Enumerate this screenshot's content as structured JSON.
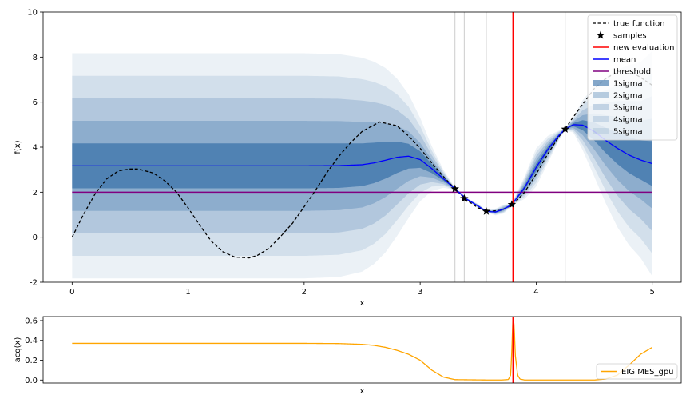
{
  "chart_data": [
    {
      "type": "line",
      "xlabel": "x",
      "ylabel": "f(x)",
      "xlim": [
        -0.25,
        5.25
      ],
      "ylim": [
        -2,
        10
      ],
      "xticks": [
        0,
        1,
        2,
        3,
        4,
        5
      ],
      "yticks": [
        -2,
        0,
        2,
        4,
        6,
        8,
        10
      ],
      "grid": false,
      "legend_position": "top-right",
      "legend": [
        "true function",
        "samples",
        "new evaluation",
        "mean",
        "threshold",
        "1sigma",
        "2sigma",
        "3sigma",
        "4sigma",
        "5sigma"
      ],
      "samples": [
        {
          "x": 3.3,
          "y": 2.15
        },
        {
          "x": 3.38,
          "y": 1.72
        },
        {
          "x": 3.57,
          "y": 1.15
        },
        {
          "x": 3.79,
          "y": 1.45
        },
        {
          "x": 4.25,
          "y": 4.8
        }
      ],
      "new_evaluation_x": 3.8,
      "threshold": 2.0,
      "sample_vlines_x": [
        3.3,
        3.38,
        3.57,
        4.25
      ],
      "true_function": {
        "x": [
          0,
          0.1,
          0.2,
          0.3,
          0.4,
          0.5,
          0.57,
          0.7,
          0.8,
          0.9,
          1.0,
          1.1,
          1.2,
          1.3,
          1.4,
          1.53,
          1.6,
          1.7,
          1.8,
          1.9,
          2.0,
          2.1,
          2.2,
          2.3,
          2.4,
          2.5,
          2.65,
          2.8,
          2.9,
          3.0,
          3.1,
          3.2,
          3.3,
          3.4,
          3.5,
          3.6,
          3.7,
          3.8,
          3.9,
          4.0,
          4.1,
          4.2,
          4.25,
          4.3,
          4.4,
          4.5,
          4.6,
          4.7,
          4.8,
          4.9,
          5.0
        ],
        "y": [
          0.0,
          1.03,
          1.94,
          2.6,
          2.95,
          3.03,
          3.03,
          2.85,
          2.5,
          2.0,
          1.3,
          0.53,
          -0.18,
          -0.65,
          -0.88,
          -0.92,
          -0.8,
          -0.48,
          0.05,
          0.62,
          1.35,
          2.1,
          2.9,
          3.6,
          4.2,
          4.7,
          5.12,
          4.95,
          4.5,
          3.95,
          3.3,
          2.7,
          2.15,
          1.65,
          1.3,
          1.15,
          1.2,
          1.45,
          2.0,
          2.8,
          3.7,
          4.5,
          4.8,
          5.2,
          5.9,
          6.6,
          7.05,
          7.35,
          7.4,
          7.1,
          6.75
        ]
      },
      "mean": {
        "x": [
          0,
          0.5,
          1.0,
          1.5,
          2.0,
          2.3,
          2.5,
          2.6,
          2.7,
          2.8,
          2.9,
          3.0,
          3.1,
          3.2,
          3.3,
          3.4,
          3.5,
          3.57,
          3.65,
          3.72,
          3.79,
          3.9,
          4.0,
          4.1,
          4.2,
          4.25,
          4.32,
          4.4,
          4.5,
          4.6,
          4.7,
          4.8,
          4.9,
          5.0
        ],
        "y": [
          3.17,
          3.17,
          3.17,
          3.17,
          3.17,
          3.18,
          3.22,
          3.3,
          3.42,
          3.55,
          3.6,
          3.45,
          3.05,
          2.6,
          2.15,
          1.7,
          1.38,
          1.15,
          1.12,
          1.25,
          1.45,
          2.2,
          3.1,
          3.9,
          4.55,
          4.8,
          5.0,
          4.98,
          4.7,
          4.3,
          3.95,
          3.65,
          3.43,
          3.27
        ]
      },
      "sigma": {
        "x": [
          0,
          0.5,
          1.0,
          1.5,
          2.0,
          2.3,
          2.5,
          2.6,
          2.7,
          2.8,
          2.9,
          3.0,
          3.1,
          3.2,
          3.3,
          3.4,
          3.5,
          3.57,
          3.65,
          3.72,
          3.79,
          3.9,
          4.0,
          4.1,
          4.2,
          4.25,
          4.32,
          4.4,
          4.5,
          4.6,
          4.7,
          4.8,
          4.9,
          5.0
        ],
        "values": [
          1.0,
          1.0,
          1.0,
          1.0,
          1.0,
          0.99,
          0.95,
          0.9,
          0.82,
          0.7,
          0.55,
          0.37,
          0.2,
          0.08,
          0.01,
          0.01,
          0.02,
          0.01,
          0.03,
          0.04,
          0.01,
          0.1,
          0.17,
          0.12,
          0.04,
          0.01,
          0.07,
          0.22,
          0.4,
          0.56,
          0.7,
          0.8,
          0.87,
          1.0
        ]
      },
      "colors": {
        "true_function": "#000000",
        "samples": "#000000",
        "new_evaluation": "#ff0000",
        "mean": "#0000ff",
        "threshold": "#800080",
        "sigma_band": "#1f5f9f",
        "sample_vline": "#cccccc"
      }
    },
    {
      "type": "line",
      "xlabel": "x",
      "ylabel": "acq(x)",
      "xlim": [
        -0.25,
        5.25
      ],
      "ylim": [
        -0.03,
        0.64
      ],
      "yticks": [
        0.0,
        0.2,
        0.4,
        0.6
      ],
      "legend_position": "bottom-right",
      "series": [
        {
          "name": "EIG MES_gpu",
          "x": [
            0,
            0.5,
            1.0,
            1.5,
            2.0,
            2.3,
            2.5,
            2.6,
            2.7,
            2.8,
            2.9,
            3.0,
            3.1,
            3.2,
            3.3,
            3.6,
            3.7,
            3.76,
            3.78,
            3.79,
            3.8,
            3.81,
            3.82,
            3.84,
            3.86,
            3.9,
            4.0,
            4.2,
            4.5,
            4.6,
            4.7,
            4.8,
            4.9,
            5.0
          ],
          "y": [
            0.37,
            0.37,
            0.37,
            0.37,
            0.37,
            0.368,
            0.36,
            0.35,
            0.33,
            0.3,
            0.26,
            0.2,
            0.1,
            0.03,
            0.004,
            0.0,
            0.0,
            0.005,
            0.05,
            0.3,
            0.64,
            0.55,
            0.25,
            0.05,
            0.01,
            0.0,
            0.0,
            0.0,
            0.0,
            0.01,
            0.05,
            0.15,
            0.26,
            0.33
          ]
        }
      ],
      "new_evaluation_x": 3.8,
      "colors": {
        "series": "#ffa500",
        "new_evaluation": "#ff0000"
      }
    }
  ]
}
